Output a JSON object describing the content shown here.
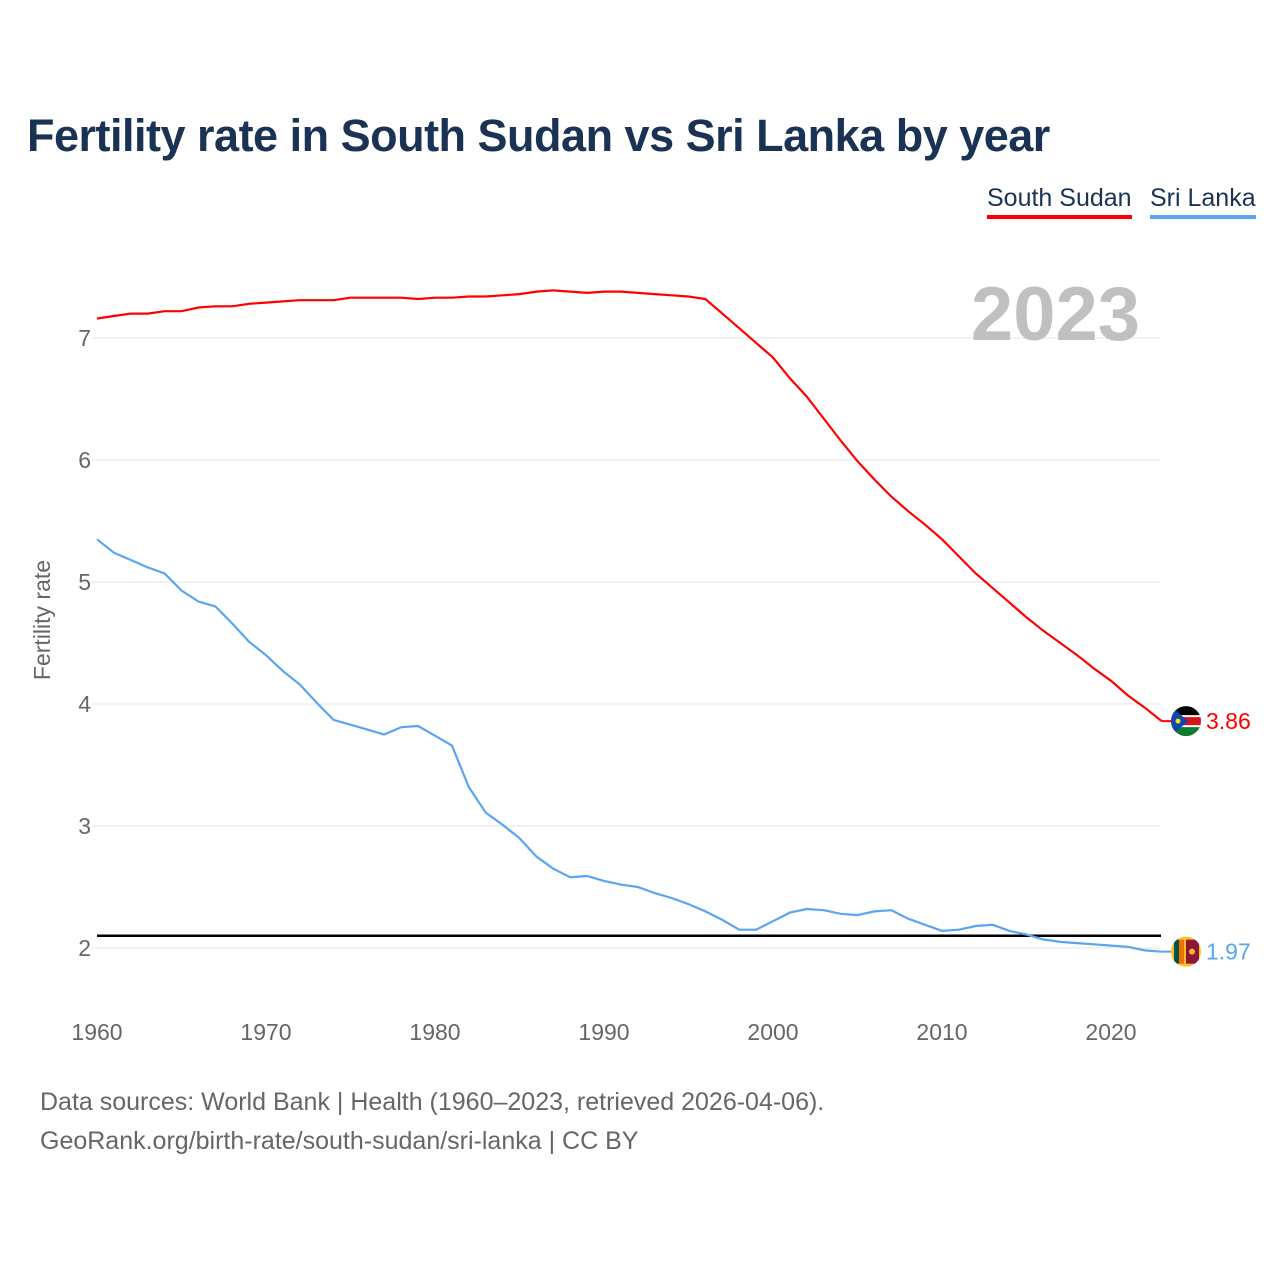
{
  "title": "Fertility rate in South Sudan vs Sri Lanka by year",
  "legend": [
    {
      "label": "South Sudan",
      "color": "#ff0000"
    },
    {
      "label": "Sri Lanka",
      "color": "#5aa5ef"
    }
  ],
  "year_label": "2023",
  "footer": {
    "line1": "Data sources: World Bank | Health (1960–2023, retrieved 2026-04-06).",
    "line2": "GeoRank.org/birth-rate/south-sudan/sri-lanka | CC BY"
  },
  "chart_data": {
    "type": "line",
    "title": "Fertility rate in South Sudan vs Sri Lanka by year",
    "xlabel": "",
    "ylabel": "Fertility rate",
    "xlim": [
      1960,
      2023
    ],
    "ylim": [
      1.5,
      7.5
    ],
    "xticks": [
      "1960",
      "1970",
      "1980",
      "1990",
      "2000",
      "2010",
      "2020"
    ],
    "yticks": [
      "2",
      "3",
      "4",
      "5",
      "6",
      "7"
    ],
    "reference_line": 2.1,
    "grid": true,
    "legend_position": "top-right",
    "series": [
      {
        "name": "South Sudan",
        "color": "#ff0000",
        "end_label": "3.86",
        "values": [
          7.16,
          7.18,
          7.2,
          7.2,
          7.22,
          7.22,
          7.25,
          7.26,
          7.26,
          7.28,
          7.29,
          7.3,
          7.31,
          7.31,
          7.31,
          7.33,
          7.33,
          7.33,
          7.33,
          7.32,
          7.33,
          7.33,
          7.34,
          7.34,
          7.35,
          7.36,
          7.38,
          7.39,
          7.38,
          7.37,
          7.38,
          7.38,
          7.37,
          7.36,
          7.35,
          7.34,
          7.32,
          7.2,
          7.08,
          6.96,
          6.84,
          6.67,
          6.52,
          6.34,
          6.16,
          5.99,
          5.84,
          5.7,
          5.58,
          5.47,
          5.35,
          5.21,
          5.07,
          4.95,
          4.83,
          4.71,
          4.6,
          4.5,
          4.4,
          4.29,
          4.19,
          4.07,
          3.97,
          3.86
        ]
      },
      {
        "name": "Sri Lanka",
        "color": "#5aa5ef",
        "end_label": "1.97",
        "values": [
          5.35,
          5.24,
          5.18,
          5.12,
          5.07,
          4.93,
          4.84,
          4.8,
          4.66,
          4.51,
          4.4,
          4.27,
          4.16,
          4.01,
          3.87,
          3.83,
          3.79,
          3.75,
          3.81,
          3.82,
          3.74,
          3.66,
          3.32,
          3.11,
          3.01,
          2.9,
          2.75,
          2.65,
          2.58,
          2.59,
          2.55,
          2.52,
          2.5,
          2.45,
          2.41,
          2.36,
          2.3,
          2.23,
          2.15,
          2.15,
          2.22,
          2.29,
          2.32,
          2.31,
          2.28,
          2.27,
          2.3,
          2.31,
          2.24,
          2.19,
          2.14,
          2.15,
          2.18,
          2.19,
          2.14,
          2.11,
          2.07,
          2.05,
          2.04,
          2.03,
          2.02,
          2.01,
          1.98,
          1.97
        ]
      }
    ]
  }
}
